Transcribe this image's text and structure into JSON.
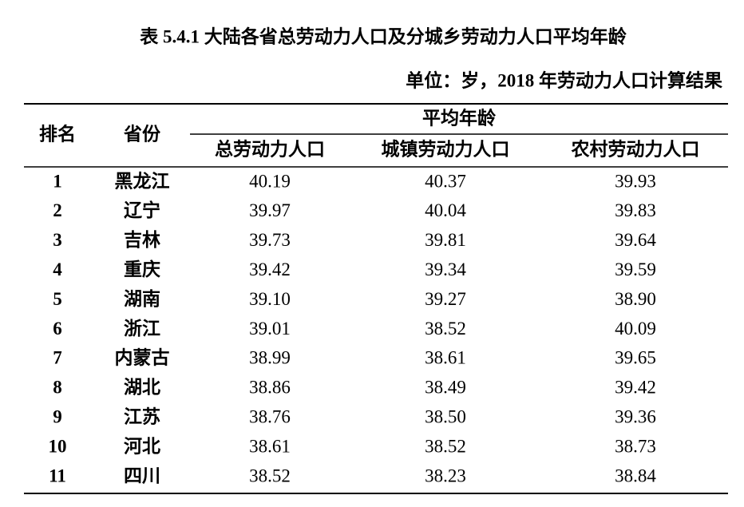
{
  "title": "表 5.4.1 大陆各省总劳动力人口及分城乡劳动力人口平均年龄",
  "unit": "单位：岁，2018 年劳动力人口计算结果",
  "table": {
    "header": {
      "rank": "排名",
      "province": "省份",
      "group": "平均年龄",
      "columns": [
        "总劳动力人口",
        "城镇劳动力人口",
        "农村劳动力人口"
      ]
    },
    "rows": [
      [
        "1",
        "黑龙江",
        "40.19",
        "40.37",
        "39.93"
      ],
      [
        "2",
        "辽宁",
        "39.97",
        "40.04",
        "39.83"
      ],
      [
        "3",
        "吉林",
        "39.73",
        "39.81",
        "39.64"
      ],
      [
        "4",
        "重庆",
        "39.42",
        "39.34",
        "39.59"
      ],
      [
        "5",
        "湖南",
        "39.10",
        "39.27",
        "38.90"
      ],
      [
        "6",
        "浙江",
        "39.01",
        "38.52",
        "40.09"
      ],
      [
        "7",
        "内蒙古",
        "38.99",
        "38.61",
        "39.65"
      ],
      [
        "8",
        "湖北",
        "38.86",
        "38.49",
        "39.42"
      ],
      [
        "9",
        "江苏",
        "38.76",
        "38.50",
        "39.36"
      ],
      [
        "10",
        "河北",
        "38.61",
        "38.52",
        "38.73"
      ],
      [
        "11",
        "四川",
        "38.52",
        "38.23",
        "38.84"
      ]
    ]
  }
}
